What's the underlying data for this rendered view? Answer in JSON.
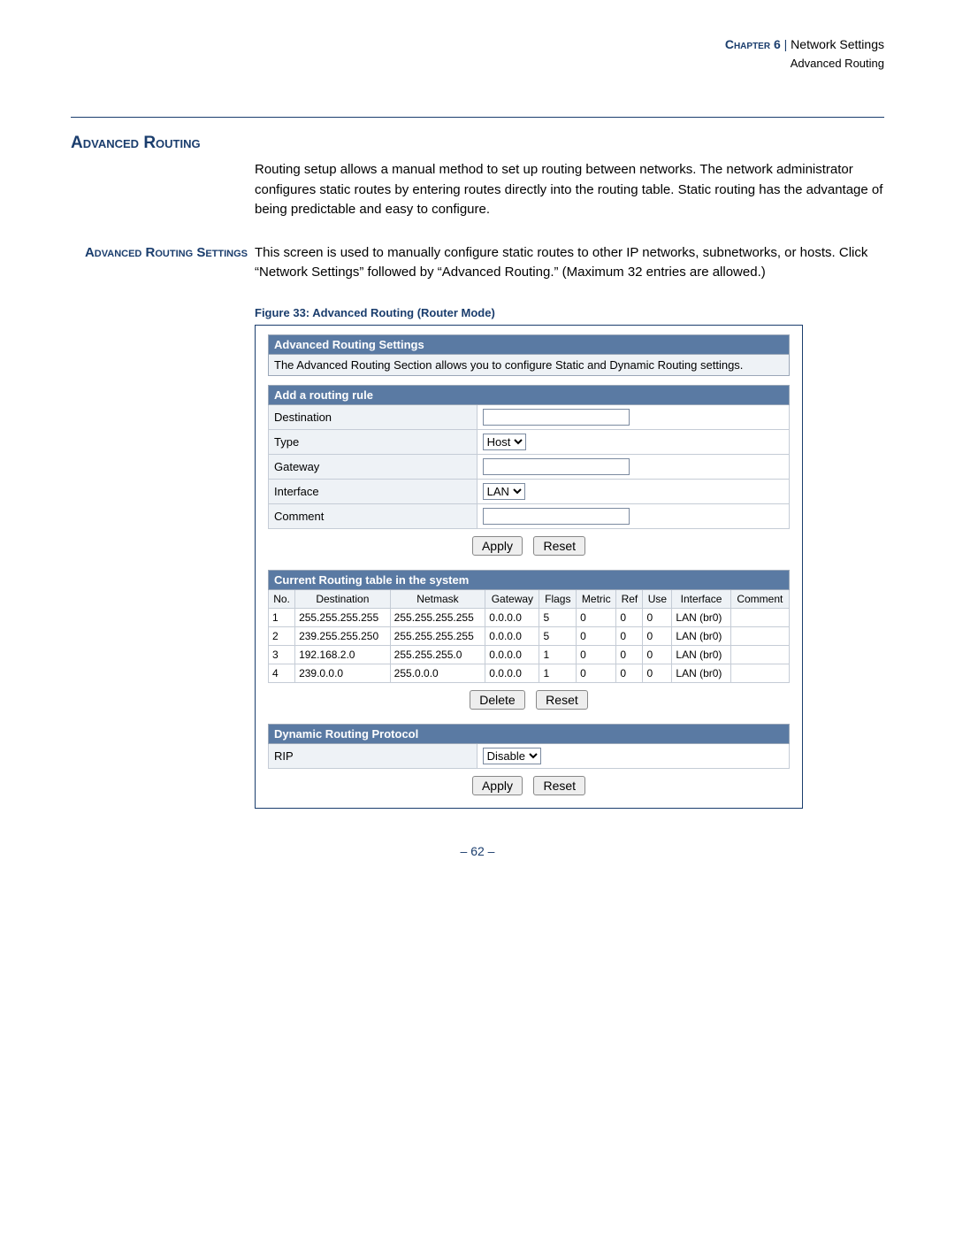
{
  "header": {
    "chapter_label": "Chapter 6",
    "separator": " | ",
    "section": "Network Settings",
    "subsection": "Advanced Routing"
  },
  "section_title": "Advanced Routing",
  "intro_text": "Routing setup allows a manual method to set up routing between networks. The network administrator configures static routes by entering routes directly into the routing table. Static routing has the advantage of being predictable and easy to configure.",
  "subsection_label": "Advanced Routing Settings",
  "subsection_text": "This screen is used to manually configure static routes to other IP networks, subnetworks, or hosts. Click “Network Settings” followed by “Advanced Routing.” (Maximum 32 entries are allowed.)",
  "figure_caption": "Figure 33:  Advanced Routing (Router Mode)",
  "screenshot": {
    "colors": {
      "panel_header_bg": "#5a7aa3",
      "panel_header_text": "#ffffff",
      "panel_body_bg": "#eef2f6",
      "border": "#9aa7b8",
      "cell_border": "#c5ccd6"
    },
    "advanced_settings": {
      "title": "Advanced Routing Settings",
      "description": "The Advanced Routing Section allows you to configure Static and Dynamic Routing settings."
    },
    "add_rule": {
      "title": "Add a routing rule",
      "fields": {
        "destination_label": "Destination",
        "type_label": "Type",
        "type_value": "Host",
        "gateway_label": "Gateway",
        "interface_label": "Interface",
        "interface_value": "LAN",
        "comment_label": "Comment"
      },
      "buttons": {
        "apply": "Apply",
        "reset": "Reset"
      }
    },
    "routing_table": {
      "title": "Current Routing table in the system",
      "columns": [
        "No.",
        "Destination",
        "Netmask",
        "Gateway",
        "Flags",
        "Metric",
        "Ref",
        "Use",
        "Interface",
        "Comment"
      ],
      "rows": [
        [
          "1",
          "255.255.255.255",
          "255.255.255.255",
          "0.0.0.0",
          "5",
          "0",
          "0",
          "0",
          "LAN (br0)",
          ""
        ],
        [
          "2",
          "239.255.255.250",
          "255.255.255.255",
          "0.0.0.0",
          "5",
          "0",
          "0",
          "0",
          "LAN (br0)",
          ""
        ],
        [
          "3",
          "192.168.2.0",
          "255.255.255.0",
          "0.0.0.0",
          "1",
          "0",
          "0",
          "0",
          "LAN (br0)",
          ""
        ],
        [
          "4",
          "239.0.0.0",
          "255.0.0.0",
          "0.0.0.0",
          "1",
          "0",
          "0",
          "0",
          "LAN (br0)",
          ""
        ]
      ],
      "buttons": {
        "delete": "Delete",
        "reset": "Reset"
      }
    },
    "dynamic_routing": {
      "title": "Dynamic Routing Protocol",
      "rip_label": "RIP",
      "rip_value": "Disable",
      "buttons": {
        "apply": "Apply",
        "reset": "Reset"
      }
    }
  },
  "page_number": "– 62 –"
}
